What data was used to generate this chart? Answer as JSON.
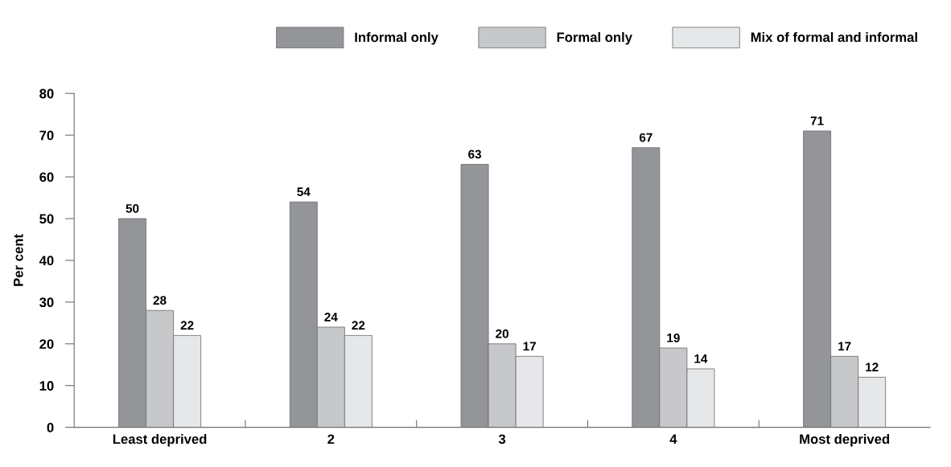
{
  "chart_data": {
    "type": "bar",
    "ylabel": "Per cent",
    "categories": [
      "Least deprived",
      "2",
      "3",
      "4",
      "Most deprived"
    ],
    "series": [
      {
        "name": "Informal only",
        "color": "#939598",
        "values": [
          50,
          54,
          63,
          67,
          71
        ]
      },
      {
        "name": "Formal only",
        "color": "#c7c8ca",
        "values": [
          28,
          24,
          20,
          19,
          17
        ]
      },
      {
        "name": "Mix of formal and informal",
        "color": "#e6e7e8",
        "values": [
          22,
          22,
          17,
          14,
          12
        ]
      }
    ],
    "ylim": [
      0,
      80
    ],
    "yticks": [
      0,
      10,
      20,
      30,
      40,
      50,
      60,
      70,
      80
    ],
    "data_labels": true,
    "grid": false,
    "legend": "top"
  }
}
